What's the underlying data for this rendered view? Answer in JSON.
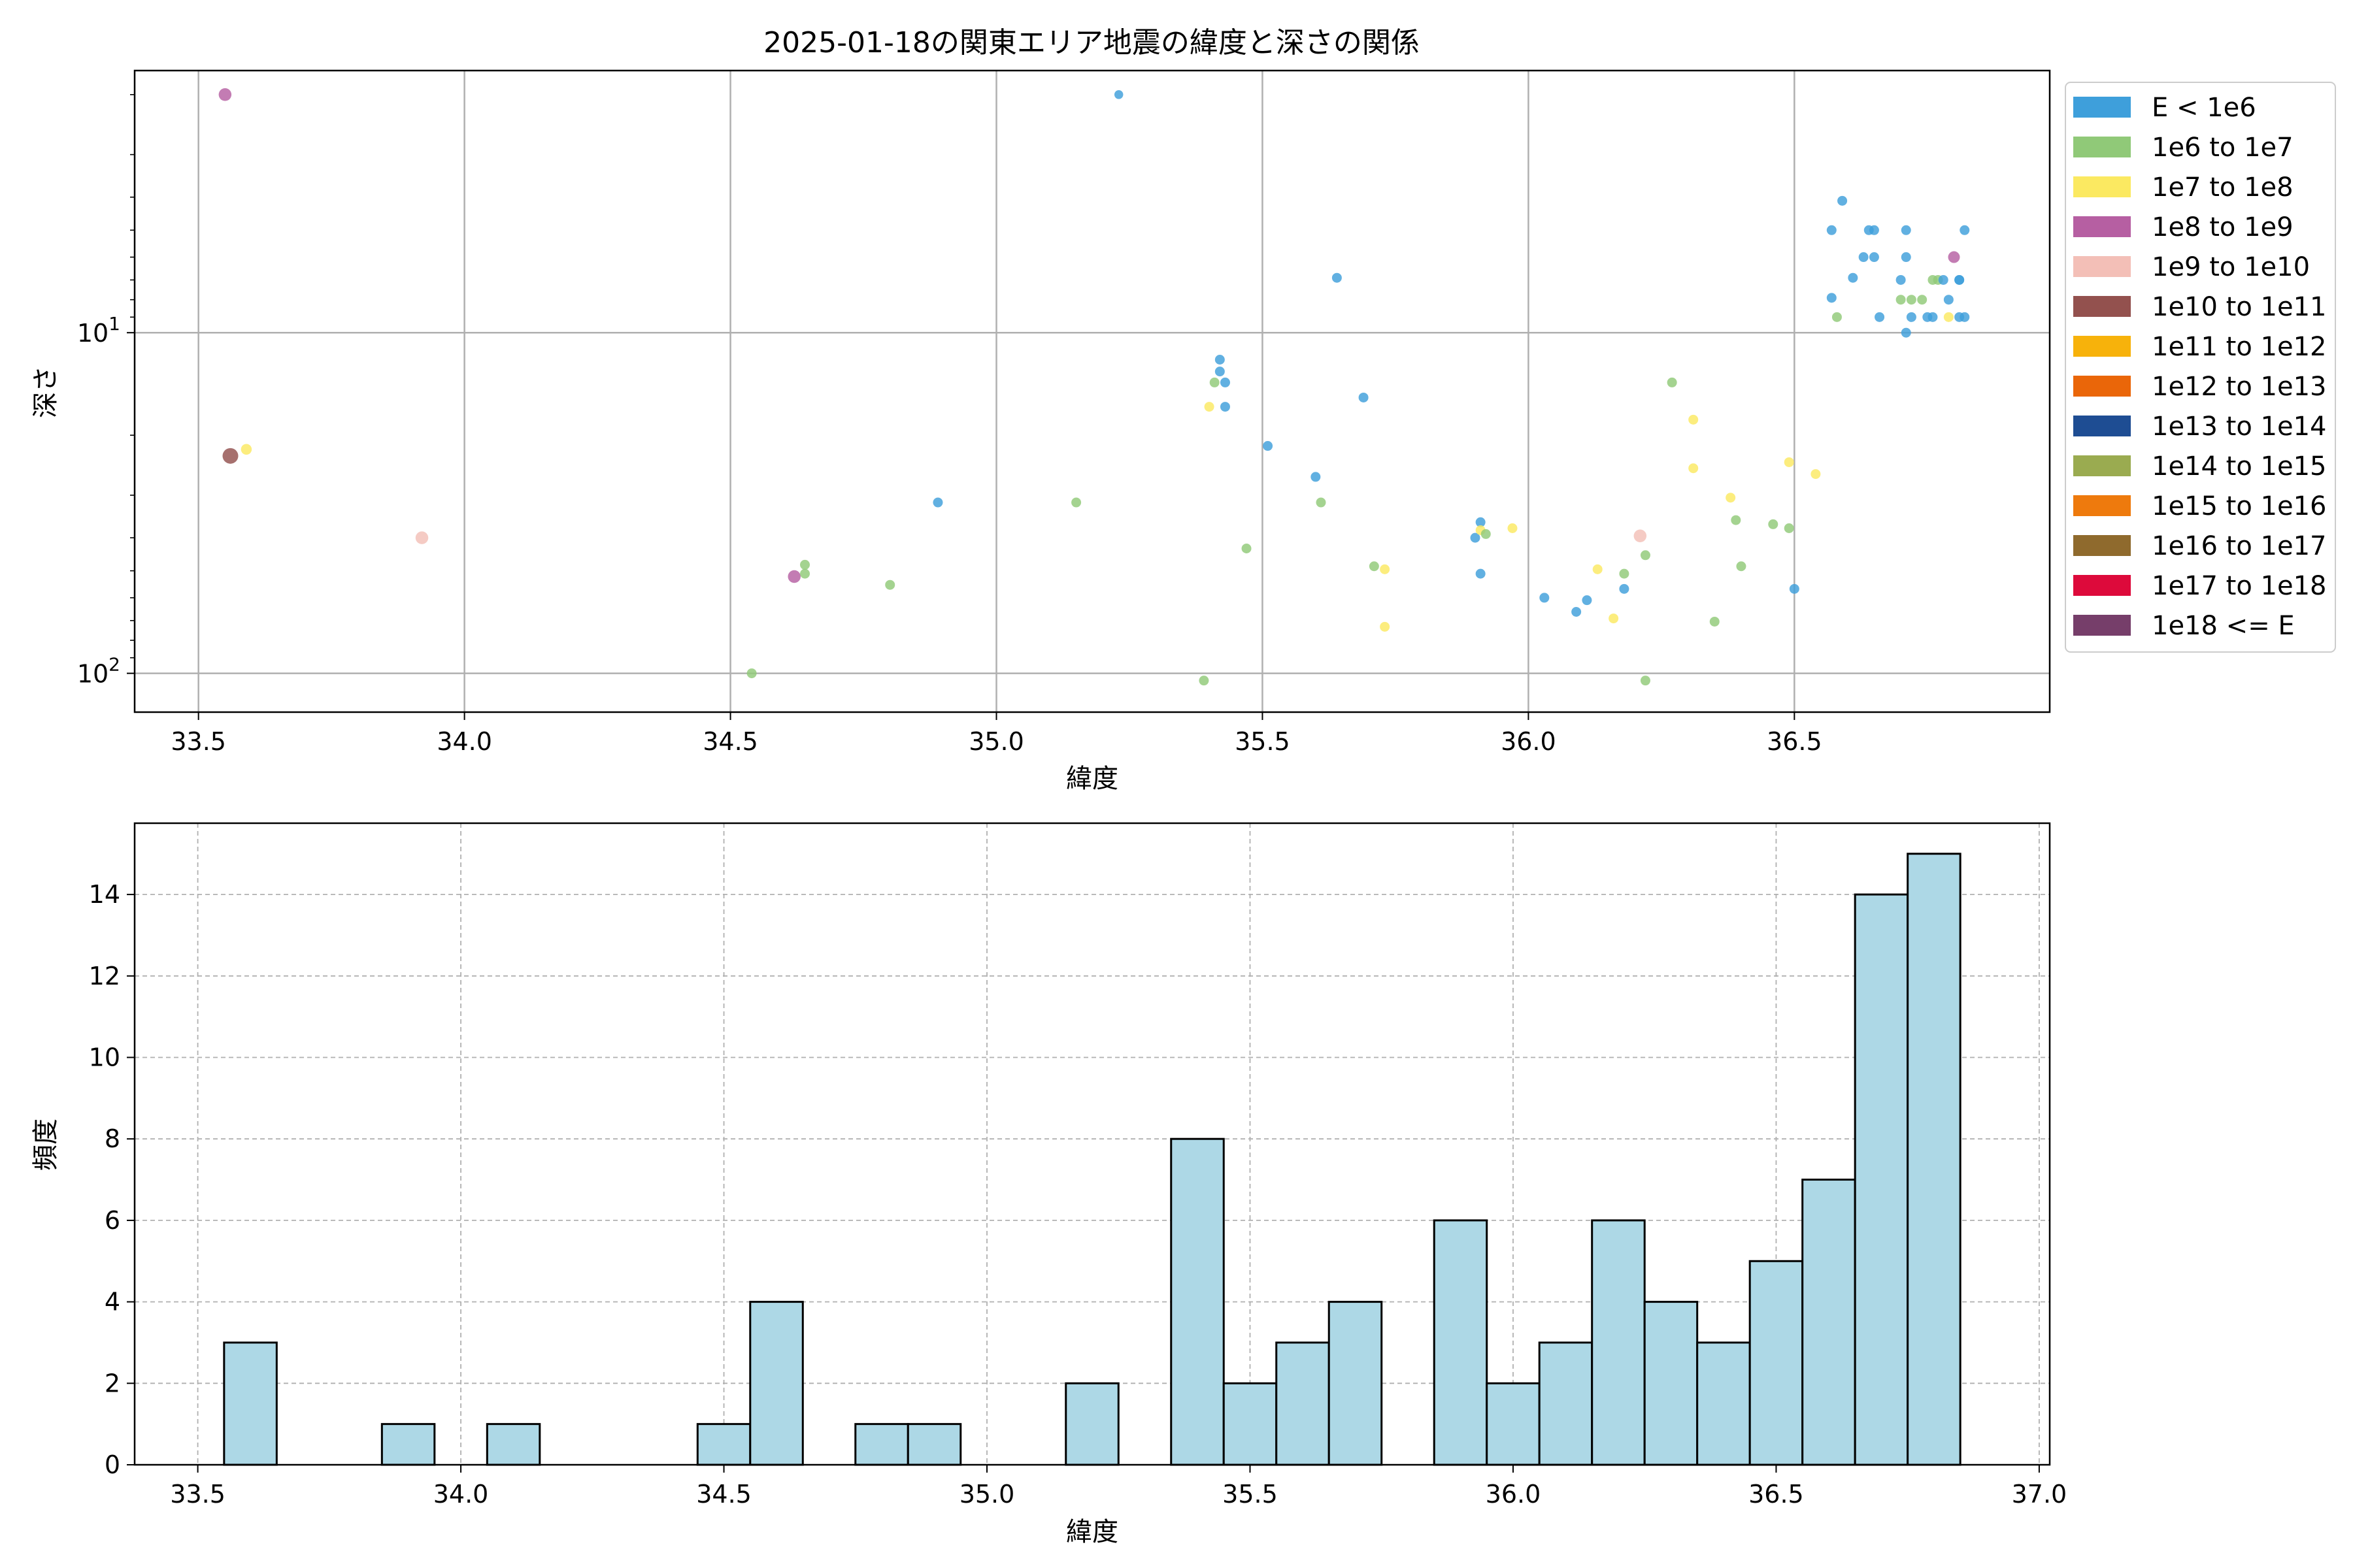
{
  "chart_data": [
    {
      "type": "scatter",
      "title": "2025-01-18の関東エリア地震の緯度と深さの関係",
      "xlabel": "緯度",
      "ylabel": "深さ",
      "xlim": [
        33.38,
        36.98
      ],
      "ylim": [
        130,
        1.7
      ],
      "y_scale": "log",
      "y_inverted": true,
      "x_ticks": [
        "33.5",
        "34.0",
        "34.5",
        "35.0",
        "35.5",
        "36.0",
        "36.5"
      ],
      "x_tick_values": [
        33.5,
        34.0,
        34.5,
        35.0,
        35.5,
        36.0,
        36.5
      ],
      "y_ticks": [
        {
          "value": 10,
          "base": "10",
          "exp": "1"
        },
        {
          "value": 100,
          "base": "10",
          "exp": "2"
        }
      ],
      "grid": true,
      "legend_position": "outside-right",
      "legend": [
        {
          "label": "E < 1e6",
          "color": "#3e9fdb"
        },
        {
          "label": "1e6 to 1e7",
          "color": "#90c978"
        },
        {
          "label": "1e7 to 1e8",
          "color": "#fbe961"
        },
        {
          "label": "1e8 to 1e9",
          "color": "#b65fa2"
        },
        {
          "label": "1e9 to 1e10",
          "color": "#f3bfb7"
        },
        {
          "label": "1e10 to 1e11",
          "color": "#93514e"
        },
        {
          "label": "1e11 to 1e12",
          "color": "#f7b20b"
        },
        {
          "label": "1e12 to 1e13",
          "color": "#ea6609"
        },
        {
          "label": "1e13 to 1e14",
          "color": "#1e4d93"
        },
        {
          "label": "1e14 to 1e15",
          "color": "#9aab50"
        },
        {
          "label": "1e15 to 1e16",
          "color": "#ee7a0d"
        },
        {
          "label": "1e16 to 1e17",
          "color": "#8f6a2d"
        },
        {
          "label": "1e17 to 1e18",
          "color": "#dd0a3b"
        },
        {
          "label": "1e18 <= E",
          "color": "#763e6a"
        }
      ],
      "points": [
        {
          "x": 33.55,
          "y": 2.0,
          "c": 3,
          "s": 1.3
        },
        {
          "x": 33.56,
          "y": 23.0,
          "c": 5,
          "s": 1.6
        },
        {
          "x": 33.59,
          "y": 22.0,
          "c": 2,
          "s": 1.1
        },
        {
          "x": 33.92,
          "y": 40.0,
          "c": 4,
          "s": 1.3
        },
        {
          "x": 34.54,
          "y": 100.0,
          "c": 1,
          "s": 1.0
        },
        {
          "x": 34.62,
          "y": 52.0,
          "c": 3,
          "s": 1.3
        },
        {
          "x": 34.64,
          "y": 51.0,
          "c": 1,
          "s": 1.0
        },
        {
          "x": 34.64,
          "y": 48.0,
          "c": 1,
          "s": 1.0
        },
        {
          "x": 34.8,
          "y": 55.0,
          "c": 1,
          "s": 1.0
        },
        {
          "x": 34.89,
          "y": 31.5,
          "c": 0,
          "s": 1.0
        },
        {
          "x": 35.15,
          "y": 31.5,
          "c": 1,
          "s": 1.0
        },
        {
          "x": 35.23,
          "y": 2.0,
          "c": 0,
          "s": 0.9
        },
        {
          "x": 35.39,
          "y": 105.0,
          "c": 1,
          "s": 1.0
        },
        {
          "x": 35.4,
          "y": 16.5,
          "c": 2,
          "s": 1.0
        },
        {
          "x": 35.41,
          "y": 14.0,
          "c": 1,
          "s": 1.0
        },
        {
          "x": 35.42,
          "y": 12.0,
          "c": 0,
          "s": 1.0
        },
        {
          "x": 35.42,
          "y": 13.0,
          "c": 0,
          "s": 1.0
        },
        {
          "x": 35.43,
          "y": 14.0,
          "c": 0,
          "s": 1.0
        },
        {
          "x": 35.43,
          "y": 16.5,
          "c": 0,
          "s": 1.0
        },
        {
          "x": 35.47,
          "y": 43.0,
          "c": 1,
          "s": 1.0
        },
        {
          "x": 35.51,
          "y": 21.5,
          "c": 0,
          "s": 1.0
        },
        {
          "x": 35.6,
          "y": 26.5,
          "c": 0,
          "s": 1.0
        },
        {
          "x": 35.61,
          "y": 31.5,
          "c": 1,
          "s": 1.0
        },
        {
          "x": 35.64,
          "y": 6.9,
          "c": 0,
          "s": 1.0
        },
        {
          "x": 35.69,
          "y": 15.5,
          "c": 0,
          "s": 1.0
        },
        {
          "x": 35.71,
          "y": 48.5,
          "c": 1,
          "s": 1.0
        },
        {
          "x": 35.73,
          "y": 49.5,
          "c": 2,
          "s": 1.0
        },
        {
          "x": 35.73,
          "y": 73.0,
          "c": 2,
          "s": 1.0
        },
        {
          "x": 35.9,
          "y": 40.0,
          "c": 0,
          "s": 1.0
        },
        {
          "x": 35.91,
          "y": 36.0,
          "c": 0,
          "s": 1.0
        },
        {
          "x": 35.91,
          "y": 38.0,
          "c": 2,
          "s": 1.0
        },
        {
          "x": 35.92,
          "y": 39.0,
          "c": 1,
          "s": 1.0
        },
        {
          "x": 35.91,
          "y": 51.0,
          "c": 0,
          "s": 1.0
        },
        {
          "x": 35.97,
          "y": 37.5,
          "c": 2,
          "s": 1.0
        },
        {
          "x": 36.03,
          "y": 60.0,
          "c": 0,
          "s": 1.0
        },
        {
          "x": 36.09,
          "y": 66.0,
          "c": 0,
          "s": 1.0
        },
        {
          "x": 36.11,
          "y": 61.0,
          "c": 0,
          "s": 1.0
        },
        {
          "x": 36.13,
          "y": 49.5,
          "c": 2,
          "s": 1.0
        },
        {
          "x": 36.16,
          "y": 69.0,
          "c": 2,
          "s": 1.0
        },
        {
          "x": 36.18,
          "y": 51.0,
          "c": 1,
          "s": 1.0
        },
        {
          "x": 36.18,
          "y": 56.5,
          "c": 0,
          "s": 1.0
        },
        {
          "x": 36.21,
          "y": 39.5,
          "c": 4,
          "s": 1.3
        },
        {
          "x": 36.22,
          "y": 45.0,
          "c": 1,
          "s": 1.0
        },
        {
          "x": 36.22,
          "y": 105.0,
          "c": 1,
          "s": 1.0
        },
        {
          "x": 36.27,
          "y": 14.0,
          "c": 1,
          "s": 1.0
        },
        {
          "x": 36.31,
          "y": 18.0,
          "c": 2,
          "s": 1.0
        },
        {
          "x": 36.31,
          "y": 25.0,
          "c": 2,
          "s": 1.0
        },
        {
          "x": 36.35,
          "y": 70.5,
          "c": 1,
          "s": 1.0
        },
        {
          "x": 36.38,
          "y": 30.5,
          "c": 2,
          "s": 1.0
        },
        {
          "x": 36.39,
          "y": 35.5,
          "c": 1,
          "s": 1.0
        },
        {
          "x": 36.4,
          "y": 48.5,
          "c": 1,
          "s": 1.0
        },
        {
          "x": 36.46,
          "y": 36.5,
          "c": 1,
          "s": 1.0
        },
        {
          "x": 36.49,
          "y": 37.5,
          "c": 1,
          "s": 1.0
        },
        {
          "x": 36.49,
          "y": 24.0,
          "c": 2,
          "s": 1.0
        },
        {
          "x": 36.5,
          "y": 56.5,
          "c": 0,
          "s": 1.0
        },
        {
          "x": 36.54,
          "y": 26.0,
          "c": 2,
          "s": 1.0
        },
        {
          "x": 36.57,
          "y": 5.0,
          "c": 0,
          "s": 1.0
        },
        {
          "x": 36.57,
          "y": 7.9,
          "c": 0,
          "s": 1.0
        },
        {
          "x": 36.58,
          "y": 9.0,
          "c": 1,
          "s": 1.0
        },
        {
          "x": 36.59,
          "y": 4.1,
          "c": 0,
          "s": 1.0
        },
        {
          "x": 36.61,
          "y": 6.9,
          "c": 0,
          "s": 1.0
        },
        {
          "x": 36.63,
          "y": 6.0,
          "c": 0,
          "s": 1.0
        },
        {
          "x": 36.64,
          "y": 5.0,
          "c": 0,
          "s": 1.0
        },
        {
          "x": 36.65,
          "y": 5.0,
          "c": 0,
          "s": 1.0
        },
        {
          "x": 36.65,
          "y": 6.0,
          "c": 0,
          "s": 1.0
        },
        {
          "x": 36.66,
          "y": 9.0,
          "c": 0,
          "s": 1.0
        },
        {
          "x": 36.7,
          "y": 7.0,
          "c": 0,
          "s": 1.0
        },
        {
          "x": 36.7,
          "y": 8.0,
          "c": 1,
          "s": 1.0
        },
        {
          "x": 36.71,
          "y": 5.0,
          "c": 0,
          "s": 1.0
        },
        {
          "x": 36.71,
          "y": 6.0,
          "c": 0,
          "s": 1.0
        },
        {
          "x": 36.72,
          "y": 9.0,
          "c": 0,
          "s": 1.0
        },
        {
          "x": 36.71,
          "y": 10.0,
          "c": 0,
          "s": 1.0
        },
        {
          "x": 36.72,
          "y": 8.0,
          "c": 1,
          "s": 1.0
        },
        {
          "x": 36.74,
          "y": 8.0,
          "c": 1,
          "s": 1.0
        },
        {
          "x": 36.75,
          "y": 9.0,
          "c": 0,
          "s": 1.0
        },
        {
          "x": 36.76,
          "y": 9.0,
          "c": 0,
          "s": 1.0
        },
        {
          "x": 36.76,
          "y": 7.0,
          "c": 1,
          "s": 1.0
        },
        {
          "x": 36.77,
          "y": 7.0,
          "c": 1,
          "s": 1.0
        },
        {
          "x": 36.78,
          "y": 7.0,
          "c": 0,
          "s": 1.0
        },
        {
          "x": 36.79,
          "y": 8.0,
          "c": 0,
          "s": 1.0
        },
        {
          "x": 36.79,
          "y": 9.0,
          "c": 2,
          "s": 1.0
        },
        {
          "x": 36.8,
          "y": 6.0,
          "c": 3,
          "s": 1.2
        },
        {
          "x": 36.81,
          "y": 7.0,
          "c": 0,
          "s": 1.0
        },
        {
          "x": 36.81,
          "y": 7.0,
          "c": 0,
          "s": 1.0
        },
        {
          "x": 36.81,
          "y": 9.0,
          "c": 0,
          "s": 1.0
        },
        {
          "x": 36.82,
          "y": 9.0,
          "c": 0,
          "s": 1.0
        },
        {
          "x": 36.82,
          "y": 5.0,
          "c": 0,
          "s": 1.0
        }
      ]
    },
    {
      "type": "bar",
      "subtype": "histogram",
      "xlabel": "緯度",
      "ylabel": "頻度",
      "xlim": [
        33.38,
        37.02
      ],
      "ylim": [
        0,
        15.75
      ],
      "x_ticks": [
        "33.5",
        "34.0",
        "34.5",
        "35.0",
        "35.5",
        "36.0",
        "36.5",
        "37.0"
      ],
      "x_tick_values": [
        33.5,
        34.0,
        34.5,
        35.0,
        35.5,
        36.0,
        36.5,
        37.0
      ],
      "y_ticks": [
        "0",
        "2",
        "4",
        "6",
        "8",
        "10",
        "12",
        "14"
      ],
      "y_tick_values": [
        0,
        2,
        4,
        6,
        8,
        10,
        12,
        14
      ],
      "grid": true,
      "grid_style": "dashed",
      "bar_color": "#add8e6",
      "bin_start": 33.55,
      "bin_width": 0.1,
      "counts": [
        3,
        0,
        0,
        1,
        0,
        1,
        0,
        0,
        0,
        1,
        4,
        0,
        1,
        1,
        0,
        0,
        2,
        0,
        8,
        2,
        3,
        4,
        0,
        6,
        2,
        3,
        6,
        4,
        3,
        5,
        7,
        14,
        15
      ]
    }
  ]
}
